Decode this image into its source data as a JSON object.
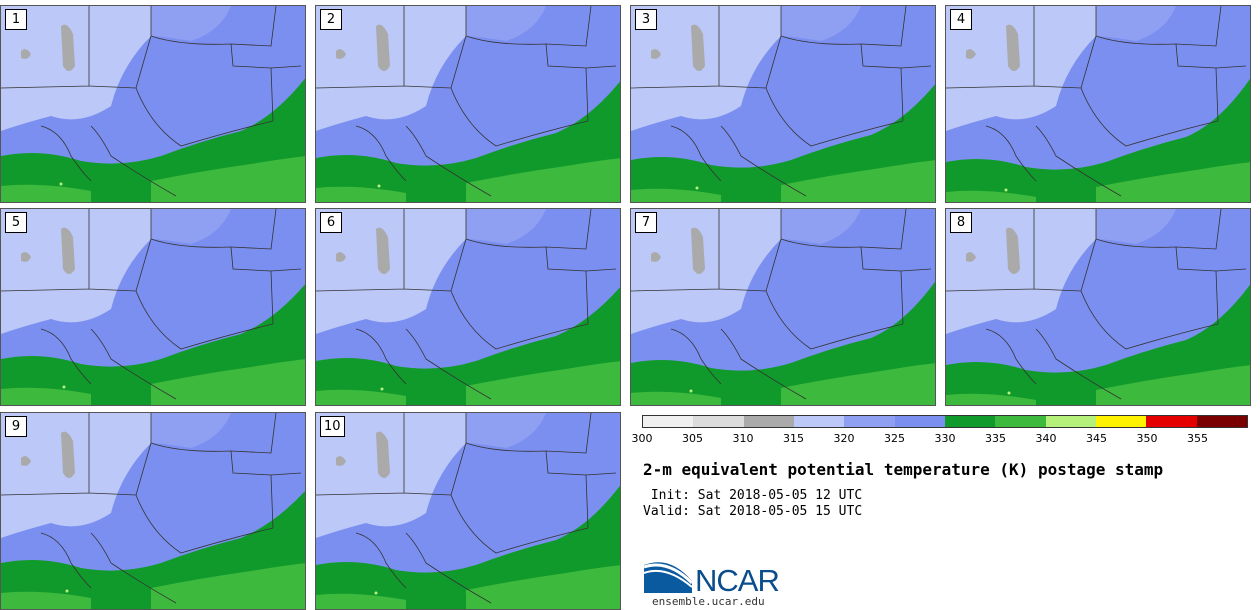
{
  "panels": [
    {
      "label": "1"
    },
    {
      "label": "2"
    },
    {
      "label": "3"
    },
    {
      "label": "4"
    },
    {
      "label": "5"
    },
    {
      "label": "6"
    },
    {
      "label": "7"
    },
    {
      "label": "8"
    },
    {
      "label": "9"
    },
    {
      "label": "10"
    }
  ],
  "colorbar": {
    "ticks": [
      "300",
      "305",
      "310",
      "315",
      "320",
      "325",
      "330",
      "335",
      "340",
      "345",
      "350",
      "355"
    ],
    "colors": [
      "#f0f0f0",
      "#dcdcdc",
      "#aaaaaa",
      "#bcc8f7",
      "#8fa0f2",
      "#7b8ff0",
      "#119a2c",
      "#3db93d",
      "#b5f07b",
      "#fff200",
      "#e50000",
      "#7a0000"
    ]
  },
  "title": "2-m equivalent potential temperature (K) postage stamp",
  "init_line": " Init: Sat 2018-05-05 12 UTC",
  "valid_line": "Valid: Sat 2018-05-05 15 UTC",
  "logo": {
    "name": "NCAR",
    "url": "ensemble.ucar.edu"
  },
  "map_colors": {
    "light_blue": "#bcc8f7",
    "mid_blue": "#8fa0f2",
    "blue": "#7b8ff0",
    "gray": "#aaaaaa",
    "dark_green": "#119a2c",
    "green": "#3db93d",
    "lime": "#b5f07b",
    "border": "#333333"
  }
}
